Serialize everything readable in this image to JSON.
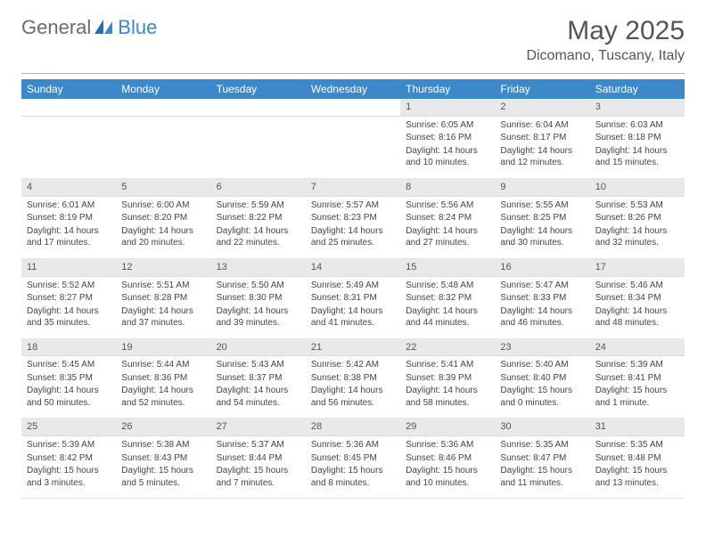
{
  "logo": {
    "text1": "General",
    "text2": "Blue"
  },
  "title": "May 2025",
  "subtitle": "Dicomano, Tuscany, Italy",
  "colors": {
    "header_bg": "#3c88c8",
    "header_fg": "#ffffff",
    "daynum_bg": "#e9e9e9",
    "text": "#444444",
    "logo_gray": "#6b6b6b",
    "logo_blue": "#3c88c8"
  },
  "day_headers": [
    "Sunday",
    "Monday",
    "Tuesday",
    "Wednesday",
    "Thursday",
    "Friday",
    "Saturday"
  ],
  "weeks": [
    [
      null,
      null,
      null,
      null,
      {
        "num": "1",
        "sunrise": "Sunrise: 6:05 AM",
        "sunset": "Sunset: 8:16 PM",
        "daylight": "Daylight: 14 hours and 10 minutes."
      },
      {
        "num": "2",
        "sunrise": "Sunrise: 6:04 AM",
        "sunset": "Sunset: 8:17 PM",
        "daylight": "Daylight: 14 hours and 12 minutes."
      },
      {
        "num": "3",
        "sunrise": "Sunrise: 6:03 AM",
        "sunset": "Sunset: 8:18 PM",
        "daylight": "Daylight: 14 hours and 15 minutes."
      }
    ],
    [
      {
        "num": "4",
        "sunrise": "Sunrise: 6:01 AM",
        "sunset": "Sunset: 8:19 PM",
        "daylight": "Daylight: 14 hours and 17 minutes."
      },
      {
        "num": "5",
        "sunrise": "Sunrise: 6:00 AM",
        "sunset": "Sunset: 8:20 PM",
        "daylight": "Daylight: 14 hours and 20 minutes."
      },
      {
        "num": "6",
        "sunrise": "Sunrise: 5:59 AM",
        "sunset": "Sunset: 8:22 PM",
        "daylight": "Daylight: 14 hours and 22 minutes."
      },
      {
        "num": "7",
        "sunrise": "Sunrise: 5:57 AM",
        "sunset": "Sunset: 8:23 PM",
        "daylight": "Daylight: 14 hours and 25 minutes."
      },
      {
        "num": "8",
        "sunrise": "Sunrise: 5:56 AM",
        "sunset": "Sunset: 8:24 PM",
        "daylight": "Daylight: 14 hours and 27 minutes."
      },
      {
        "num": "9",
        "sunrise": "Sunrise: 5:55 AM",
        "sunset": "Sunset: 8:25 PM",
        "daylight": "Daylight: 14 hours and 30 minutes."
      },
      {
        "num": "10",
        "sunrise": "Sunrise: 5:53 AM",
        "sunset": "Sunset: 8:26 PM",
        "daylight": "Daylight: 14 hours and 32 minutes."
      }
    ],
    [
      {
        "num": "11",
        "sunrise": "Sunrise: 5:52 AM",
        "sunset": "Sunset: 8:27 PM",
        "daylight": "Daylight: 14 hours and 35 minutes."
      },
      {
        "num": "12",
        "sunrise": "Sunrise: 5:51 AM",
        "sunset": "Sunset: 8:28 PM",
        "daylight": "Daylight: 14 hours and 37 minutes."
      },
      {
        "num": "13",
        "sunrise": "Sunrise: 5:50 AM",
        "sunset": "Sunset: 8:30 PM",
        "daylight": "Daylight: 14 hours and 39 minutes."
      },
      {
        "num": "14",
        "sunrise": "Sunrise: 5:49 AM",
        "sunset": "Sunset: 8:31 PM",
        "daylight": "Daylight: 14 hours and 41 minutes."
      },
      {
        "num": "15",
        "sunrise": "Sunrise: 5:48 AM",
        "sunset": "Sunset: 8:32 PM",
        "daylight": "Daylight: 14 hours and 44 minutes."
      },
      {
        "num": "16",
        "sunrise": "Sunrise: 5:47 AM",
        "sunset": "Sunset: 8:33 PM",
        "daylight": "Daylight: 14 hours and 46 minutes."
      },
      {
        "num": "17",
        "sunrise": "Sunrise: 5:46 AM",
        "sunset": "Sunset: 8:34 PM",
        "daylight": "Daylight: 14 hours and 48 minutes."
      }
    ],
    [
      {
        "num": "18",
        "sunrise": "Sunrise: 5:45 AM",
        "sunset": "Sunset: 8:35 PM",
        "daylight": "Daylight: 14 hours and 50 minutes."
      },
      {
        "num": "19",
        "sunrise": "Sunrise: 5:44 AM",
        "sunset": "Sunset: 8:36 PM",
        "daylight": "Daylight: 14 hours and 52 minutes."
      },
      {
        "num": "20",
        "sunrise": "Sunrise: 5:43 AM",
        "sunset": "Sunset: 8:37 PM",
        "daylight": "Daylight: 14 hours and 54 minutes."
      },
      {
        "num": "21",
        "sunrise": "Sunrise: 5:42 AM",
        "sunset": "Sunset: 8:38 PM",
        "daylight": "Daylight: 14 hours and 56 minutes."
      },
      {
        "num": "22",
        "sunrise": "Sunrise: 5:41 AM",
        "sunset": "Sunset: 8:39 PM",
        "daylight": "Daylight: 14 hours and 58 minutes."
      },
      {
        "num": "23",
        "sunrise": "Sunrise: 5:40 AM",
        "sunset": "Sunset: 8:40 PM",
        "daylight": "Daylight: 15 hours and 0 minutes."
      },
      {
        "num": "24",
        "sunrise": "Sunrise: 5:39 AM",
        "sunset": "Sunset: 8:41 PM",
        "daylight": "Daylight: 15 hours and 1 minute."
      }
    ],
    [
      {
        "num": "25",
        "sunrise": "Sunrise: 5:39 AM",
        "sunset": "Sunset: 8:42 PM",
        "daylight": "Daylight: 15 hours and 3 minutes."
      },
      {
        "num": "26",
        "sunrise": "Sunrise: 5:38 AM",
        "sunset": "Sunset: 8:43 PM",
        "daylight": "Daylight: 15 hours and 5 minutes."
      },
      {
        "num": "27",
        "sunrise": "Sunrise: 5:37 AM",
        "sunset": "Sunset: 8:44 PM",
        "daylight": "Daylight: 15 hours and 7 minutes."
      },
      {
        "num": "28",
        "sunrise": "Sunrise: 5:36 AM",
        "sunset": "Sunset: 8:45 PM",
        "daylight": "Daylight: 15 hours and 8 minutes."
      },
      {
        "num": "29",
        "sunrise": "Sunrise: 5:36 AM",
        "sunset": "Sunset: 8:46 PM",
        "daylight": "Daylight: 15 hours and 10 minutes."
      },
      {
        "num": "30",
        "sunrise": "Sunrise: 5:35 AM",
        "sunset": "Sunset: 8:47 PM",
        "daylight": "Daylight: 15 hours and 11 minutes."
      },
      {
        "num": "31",
        "sunrise": "Sunrise: 5:35 AM",
        "sunset": "Sunset: 8:48 PM",
        "daylight": "Daylight: 15 hours and 13 minutes."
      }
    ]
  ]
}
